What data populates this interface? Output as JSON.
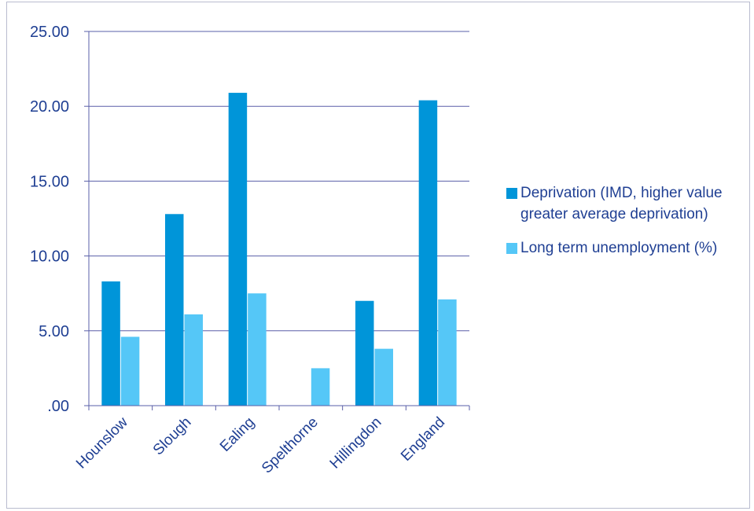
{
  "chart_data": {
    "type": "bar",
    "categories": [
      "Hounslow",
      "Slough",
      "Ealing",
      "Spelthorne",
      "Hillingdon",
      "England"
    ],
    "series": [
      {
        "name": "Deprivation (IMD, higher value greater  average deprivation)",
        "color": "#0095d9",
        "values": [
          8.3,
          12.8,
          20.9,
          0,
          7.0,
          20.4
        ]
      },
      {
        "name": "Long term unemployment (%)",
        "color": "#55c7f7",
        "values": [
          4.6,
          6.1,
          7.5,
          2.5,
          3.8,
          7.1
        ]
      }
    ],
    "y_ticks": [
      ".00",
      "5.00",
      "10.00",
      "15.00",
      "20.00",
      "25.00"
    ],
    "ylim": [
      0,
      25
    ],
    "grid": true,
    "legend_position": "right"
  }
}
